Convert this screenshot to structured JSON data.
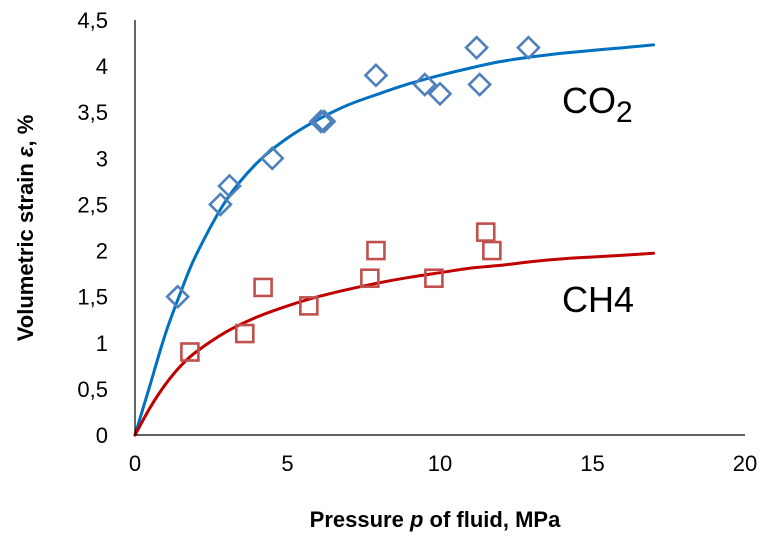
{
  "chart_data": {
    "type": "scatter",
    "xlabel": {
      "pre": "Pressure ",
      "var": "p",
      "post": " of fluid, MPa"
    },
    "ylabel": {
      "pre": "Volumetric strain ",
      "var": "ε",
      "post": ", %"
    },
    "xlim": [
      0,
      20
    ],
    "ylim": [
      0,
      4.5
    ],
    "x_ticks": [
      "0",
      "5",
      "10",
      "15",
      "20"
    ],
    "y_ticks": [
      "0",
      "0,5",
      "1",
      "1,5",
      "2",
      "2,5",
      "3",
      "3,5",
      "4",
      "4,5"
    ],
    "grid": false,
    "legend": "none",
    "series": [
      {
        "name": "CO2",
        "label_main": "CO",
        "label_sub": "2",
        "marker": "diamond",
        "marker_color": "#4F81BD",
        "line_color": "#0070C0",
        "points": [
          [
            1.4,
            1.5
          ],
          [
            2.8,
            2.5
          ],
          [
            3.1,
            2.7
          ],
          [
            4.5,
            3.0
          ],
          [
            6.1,
            3.4
          ],
          [
            6.2,
            3.4
          ],
          [
            7.9,
            3.9
          ],
          [
            9.5,
            3.8
          ],
          [
            10.0,
            3.7
          ],
          [
            11.2,
            4.2
          ],
          [
            11.3,
            3.8
          ],
          [
            12.9,
            4.2
          ]
        ],
        "fit_curve": [
          [
            0,
            0
          ],
          [
            0.5,
            0.55
          ],
          [
            1,
            1.1
          ],
          [
            1.5,
            1.55
          ],
          [
            2,
            1.95
          ],
          [
            3,
            2.55
          ],
          [
            4,
            2.95
          ],
          [
            5,
            3.22
          ],
          [
            6,
            3.42
          ],
          [
            7,
            3.58
          ],
          [
            8,
            3.7
          ],
          [
            9,
            3.81
          ],
          [
            10,
            3.9
          ],
          [
            11,
            3.98
          ],
          [
            12,
            4.05
          ],
          [
            13,
            4.1
          ],
          [
            14,
            4.14
          ],
          [
            15,
            4.17
          ],
          [
            16,
            4.2
          ],
          [
            17,
            4.23
          ]
        ]
      },
      {
        "name": "CH4",
        "label_main": "CH4",
        "label_sub": "",
        "marker": "square",
        "marker_color": "#C0504D",
        "line_color": "#C00000",
        "points": [
          [
            1.8,
            0.9
          ],
          [
            3.6,
            1.1
          ],
          [
            4.2,
            1.6
          ],
          [
            5.7,
            1.4
          ],
          [
            7.7,
            1.7
          ],
          [
            7.9,
            2.0
          ],
          [
            9.8,
            1.7
          ],
          [
            11.5,
            2.2
          ],
          [
            11.7,
            2.0
          ]
        ],
        "fit_curve": [
          [
            0,
            0
          ],
          [
            0.5,
            0.3
          ],
          [
            1,
            0.55
          ],
          [
            1.5,
            0.75
          ],
          [
            2,
            0.9
          ],
          [
            3,
            1.12
          ],
          [
            4,
            1.28
          ],
          [
            5,
            1.4
          ],
          [
            6,
            1.5
          ],
          [
            7,
            1.58
          ],
          [
            8,
            1.65
          ],
          [
            9,
            1.71
          ],
          [
            10,
            1.76
          ],
          [
            11,
            1.81
          ],
          [
            12,
            1.84
          ],
          [
            13,
            1.88
          ],
          [
            14,
            1.91
          ],
          [
            15,
            1.93
          ],
          [
            16,
            1.95
          ],
          [
            17,
            1.97
          ]
        ]
      }
    ]
  }
}
